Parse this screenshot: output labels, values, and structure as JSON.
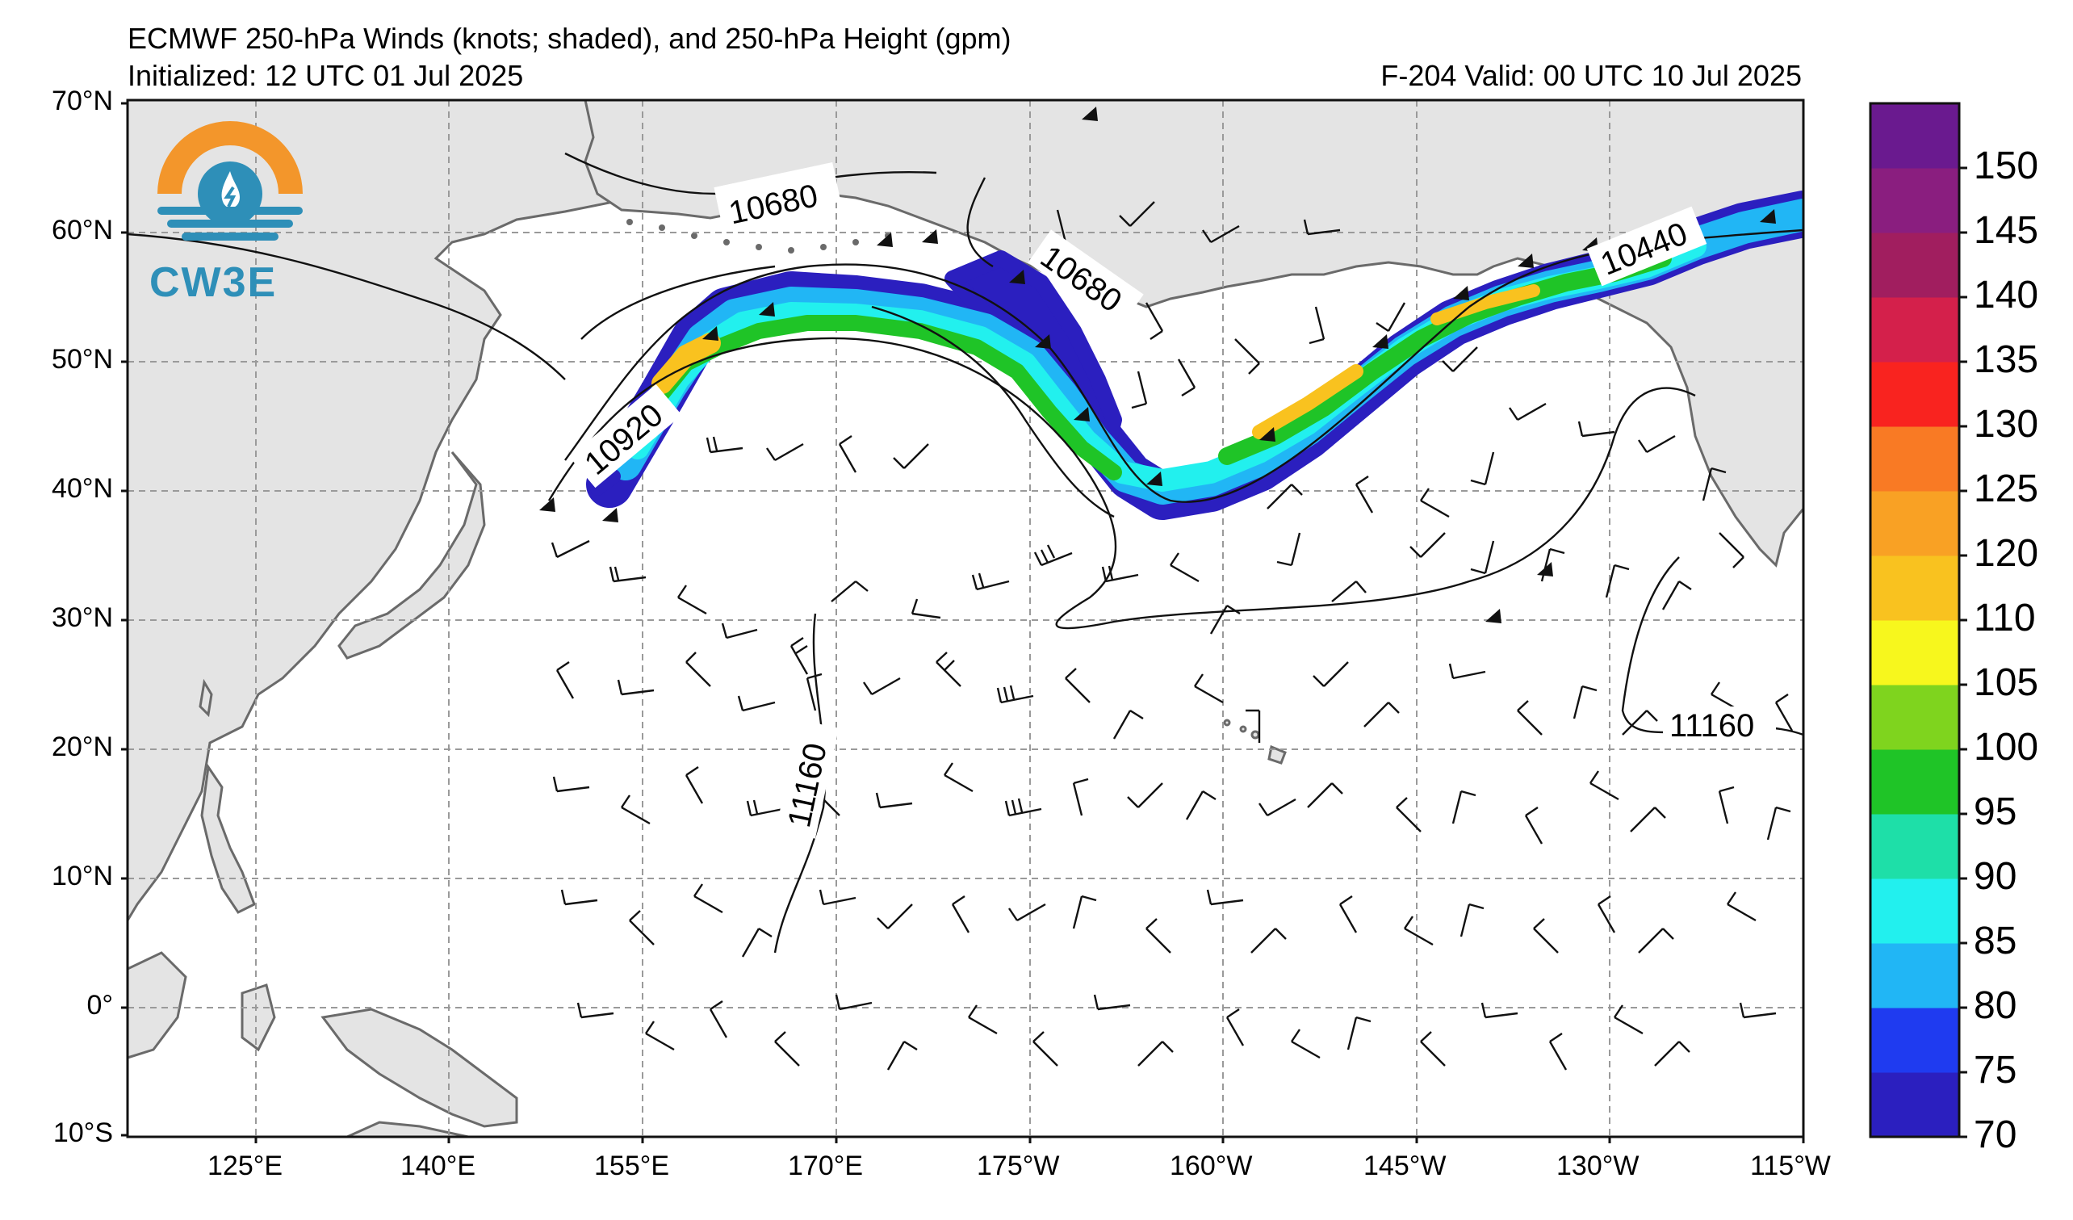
{
  "header": {
    "title": "ECMWF 250-hPa Winds (knots; shaded), and 250-hPa Height (gpm)",
    "initialized": "Initialized: 12 UTC 01 Jul 2025",
    "valid": "F-204  Valid: 00 UTC 10 Jul 2025"
  },
  "logo": {
    "text": "CW3E",
    "colors": {
      "sun": "#f3962b",
      "water": "#2e8fb8"
    }
  },
  "axes": {
    "lat_labels": [
      "70°N",
      "60°N",
      "50°N",
      "40°N",
      "30°N",
      "20°N",
      "10°N",
      "0°",
      "10°S"
    ],
    "lon_labels": [
      "125°E",
      "140°E",
      "155°E",
      "170°E",
      "175°W",
      "160°W",
      "145°W",
      "130°W",
      "115°W"
    ]
  },
  "contours": {
    "labels": [
      "10680",
      "10680",
      "10920",
      "10440",
      "11160",
      "11160"
    ]
  },
  "colorbar": {
    "ticks": [
      "150",
      "145",
      "140",
      "135",
      "130",
      "125",
      "120",
      "110",
      "105",
      "100",
      "95",
      "90",
      "85",
      "80",
      "75",
      "70"
    ],
    "colors": [
      "#2b1fbf",
      "#1f3bf0",
      "#21b6f5",
      "#22f0ee",
      "#1edfa8",
      "#1fc427",
      "#7fd41e",
      "#f7f71d",
      "#f9c21f",
      "#f9a124",
      "#f97a24",
      "#f9231f",
      "#d4204b",
      "#a11e5f",
      "#8a1e7f",
      "#6a1a8f"
    ]
  }
}
